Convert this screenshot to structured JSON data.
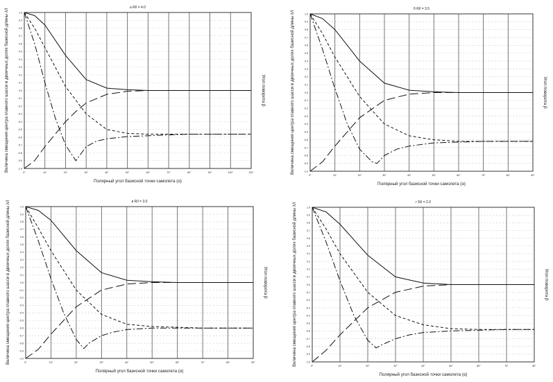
{
  "chart_data": [
    {
      "type": "line",
      "title": "а R/l = 4.0",
      "xlabel": "Полярный угол базисной точки самолета (α)",
      "ylabel": "Величина смещения центра главного шасси в двоичных долях базисной длины λ/l",
      "y2label": "Угол поворота β",
      "x_ticks": [
        "0°",
        "10°",
        "20°",
        "30°",
        "40°",
        "50°",
        "60°",
        "70°",
        "80°",
        "90°",
        "100°",
        "110°"
      ],
      "xlim": [
        0,
        110
      ],
      "ylim": [
        -1.0,
        1.0
      ],
      "series": [
        {
          "style": "solid",
          "x": [
            0,
            5,
            10,
            20,
            30,
            40,
            50,
            60,
            70,
            80,
            90,
            100,
            110
          ],
          "y": [
            1.0,
            0.96,
            0.84,
            0.45,
            0.14,
            0.03,
            0.01,
            0.0,
            0.0,
            0.0,
            0.0,
            0.0,
            0.0
          ]
        },
        {
          "style": "short-dash",
          "x": [
            0,
            5,
            10,
            20,
            30,
            40,
            50,
            60,
            70,
            80,
            90,
            100,
            110
          ],
          "y": [
            1.0,
            0.8,
            0.55,
            0.05,
            -0.3,
            -0.5,
            -0.55,
            -0.56,
            -0.56,
            -0.56,
            -0.56,
            -0.56,
            -0.56
          ]
        },
        {
          "style": "long-dash",
          "x": [
            0,
            5,
            10,
            20,
            25,
            30,
            40,
            50,
            60,
            70,
            80,
            90,
            100,
            110
          ],
          "y": [
            -1.0,
            -0.9,
            -0.72,
            -0.4,
            -0.27,
            -0.16,
            -0.05,
            -0.01,
            0.0,
            0.0,
            0.0,
            0.0,
            0.0,
            0.0
          ]
        },
        {
          "style": "dash-dot",
          "x": [
            0,
            5,
            10,
            15,
            20,
            25,
            30,
            35,
            40,
            50,
            60,
            70,
            80,
            90,
            100,
            110
          ],
          "y": [
            1.0,
            0.6,
            0.1,
            -0.35,
            -0.7,
            -0.9,
            -0.72,
            -0.65,
            -0.62,
            -0.59,
            -0.58,
            -0.57,
            -0.56,
            -0.56,
            -0.56,
            -0.56
          ]
        }
      ]
    },
    {
      "type": "line",
      "title": "б R/l = 3.5",
      "xlabel": "Полярный угол базисной точки самолета (α)",
      "ylabel": "Величина смещения центра главного шасси в двоичных долях базисной длины λ/l",
      "y2label": "Угол поворота β",
      "x_ticks": [
        "0°",
        "10°",
        "20°",
        "30°",
        "40°",
        "50°",
        "60°",
        "70°",
        "80°",
        "90°"
      ],
      "xlim": [
        0,
        90
      ],
      "ylim": [
        -1.0,
        1.0
      ],
      "series": [
        {
          "style": "solid",
          "x": [
            0,
            5,
            10,
            20,
            30,
            40,
            50,
            60,
            70,
            80,
            90
          ],
          "y": [
            1.0,
            0.94,
            0.8,
            0.4,
            0.12,
            0.03,
            0.01,
            0.0,
            0.0,
            0.0,
            0.0
          ]
        },
        {
          "style": "short-dash",
          "x": [
            0,
            5,
            10,
            20,
            30,
            40,
            50,
            60,
            70,
            80,
            90
          ],
          "y": [
            1.0,
            0.75,
            0.45,
            -0.05,
            -0.4,
            -0.55,
            -0.6,
            -0.62,
            -0.62,
            -0.62,
            -0.62
          ]
        },
        {
          "style": "long-dash",
          "x": [
            0,
            5,
            10,
            20,
            30,
            40,
            50,
            60,
            70,
            80,
            90
          ],
          "y": [
            -1.0,
            -0.88,
            -0.68,
            -0.32,
            -0.1,
            -0.02,
            0.0,
            0.0,
            0.0,
            0.0,
            0.0
          ]
        },
        {
          "style": "dash-dot",
          "x": [
            0,
            5,
            10,
            15,
            20,
            25,
            27,
            30,
            35,
            40,
            50,
            60,
            70,
            80,
            90
          ],
          "y": [
            1.0,
            0.55,
            0.05,
            -0.4,
            -0.72,
            -0.88,
            -0.9,
            -0.8,
            -0.72,
            -0.68,
            -0.64,
            -0.63,
            -0.62,
            -0.62,
            -0.62
          ]
        }
      ]
    },
    {
      "type": "line",
      "title": "в R/l = 3.0",
      "xlabel": "Полярный угол базисной точки самолета (α)",
      "ylabel": "Величина смещения центра главного шасси в двоичных долях базисной длины λ/l",
      "y2label": "Угол поворота β",
      "x_ticks": [
        "0°",
        "10°",
        "20°",
        "30°",
        "40°",
        "50°",
        "60°",
        "70°",
        "80°",
        "90°"
      ],
      "xlim": [
        0,
        90
      ],
      "ylim": [
        -1.0,
        1.0
      ],
      "series": [
        {
          "style": "solid",
          "x": [
            0,
            5,
            10,
            20,
            30,
            40,
            50,
            60,
            70,
            80,
            90
          ],
          "y": [
            1.0,
            0.95,
            0.82,
            0.42,
            0.13,
            0.03,
            0.01,
            0.0,
            0.0,
            0.0,
            0.0
          ]
        },
        {
          "style": "short-dash",
          "x": [
            0,
            5,
            10,
            20,
            30,
            40,
            50,
            60,
            70,
            80,
            90
          ],
          "y": [
            1.0,
            0.72,
            0.42,
            -0.1,
            -0.42,
            -0.55,
            -0.58,
            -0.59,
            -0.6,
            -0.6,
            -0.6
          ]
        },
        {
          "style": "long-dash",
          "x": [
            0,
            5,
            10,
            20,
            30,
            40,
            50,
            60,
            70,
            80,
            90
          ],
          "y": [
            -1.0,
            -0.88,
            -0.68,
            -0.32,
            -0.1,
            -0.02,
            0.0,
            0.0,
            0.0,
            0.0,
            0.0
          ]
        },
        {
          "style": "dash-dot",
          "x": [
            0,
            5,
            10,
            15,
            20,
            23,
            25,
            30,
            35,
            40,
            50,
            60,
            70,
            80,
            90
          ],
          "y": [
            1.0,
            0.55,
            0.05,
            -0.4,
            -0.75,
            -0.87,
            -0.8,
            -0.7,
            -0.65,
            -0.62,
            -0.6,
            -0.6,
            -0.6,
            -0.6,
            -0.6
          ]
        }
      ]
    },
    {
      "type": "line",
      "title": "г R/l = 2.0",
      "xlabel": "Полярный угол базисной точки самолета (α)",
      "ylabel": "Величина смещения центра главного шасси в двоичных долях базисной длины λ/l",
      "y2label": "Угол поворота β",
      "x_ticks": [
        "0°",
        "10°",
        "20°",
        "30°",
        "40°",
        "50°",
        "60°",
        "70°",
        "80°"
      ],
      "xlim": [
        0,
        80
      ],
      "ylim": [
        -1.0,
        1.0
      ],
      "series": [
        {
          "style": "solid",
          "x": [
            0,
            5,
            10,
            20,
            30,
            40,
            50,
            60,
            70,
            80
          ],
          "y": [
            1.0,
            0.94,
            0.78,
            0.38,
            0.1,
            0.02,
            0.0,
            0.0,
            0.0,
            0.0
          ]
        },
        {
          "style": "short-dash",
          "x": [
            0,
            5,
            10,
            20,
            30,
            40,
            50,
            60,
            70,
            80
          ],
          "y": [
            1.0,
            0.72,
            0.4,
            -0.1,
            -0.4,
            -0.52,
            -0.57,
            -0.58,
            -0.58,
            -0.58
          ]
        },
        {
          "style": "long-dash",
          "x": [
            0,
            5,
            10,
            20,
            30,
            40,
            50,
            60,
            70,
            80
          ],
          "y": [
            -1.0,
            -0.85,
            -0.65,
            -0.3,
            -0.1,
            -0.02,
            0.0,
            0.0,
            0.0,
            0.0
          ]
        },
        {
          "style": "dash-dot",
          "x": [
            0,
            5,
            10,
            15,
            20,
            23,
            25,
            30,
            35,
            40,
            50,
            60,
            70,
            80
          ],
          "y": [
            1.0,
            0.55,
            0.05,
            -0.4,
            -0.72,
            -0.82,
            -0.78,
            -0.7,
            -0.65,
            -0.62,
            -0.6,
            -0.59,
            -0.58,
            -0.58
          ]
        }
      ]
    }
  ]
}
